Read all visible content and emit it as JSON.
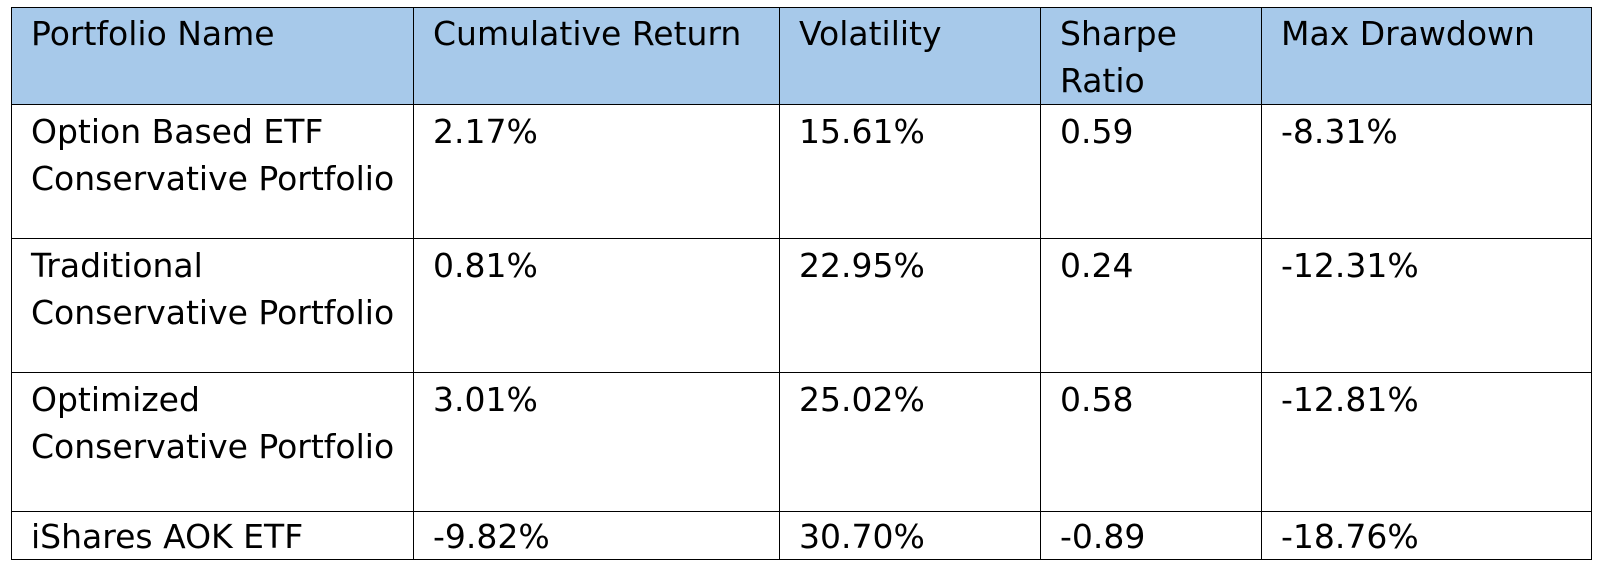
{
  "table": {
    "headers": [
      "Portfolio Name",
      "Cumulative Return",
      "Volatility",
      "Sharpe Ratio",
      "Max Drawdown"
    ],
    "rows": [
      [
        "Option Based ETF Conservative Portfolio",
        "2.17%",
        "15.61%",
        "0.59",
        "-8.31%"
      ],
      [
        "Traditional Conservative Portfolio",
        "0.81%",
        "22.95%",
        "0.24",
        "-12.31%"
      ],
      [
        "Optimized Conservative Portfolio",
        "3.01%",
        "25.02%",
        "0.58",
        "-12.81%"
      ],
      [
        "iShares AOK ETF",
        "-9.82%",
        "30.70%",
        "-0.89",
        "-18.76%"
      ]
    ]
  },
  "colors": {
    "header_background": "#a7c9ea",
    "border": "#000000",
    "text": "#000000"
  }
}
